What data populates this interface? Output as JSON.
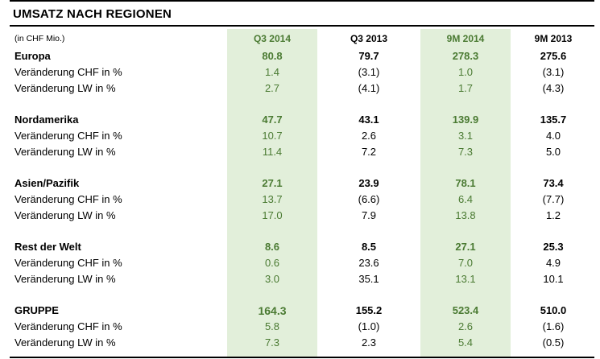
{
  "title": "UMSATZ NACH REGIONEN",
  "header": {
    "unit": "(in CHF Mio.)",
    "columns": [
      "Q3 2014",
      "Q3 2013",
      "9M 2014",
      "9M 2013"
    ]
  },
  "colors": {
    "highlight": "#e2efda",
    "green_text": "#4a7a32"
  },
  "regions": [
    {
      "name": "Europa",
      "values": [
        "80.8",
        "79.7",
        "278.3",
        "275.6"
      ],
      "rows": [
        {
          "label": "Veränderung CHF in %",
          "values": [
            "1.4",
            "(3.1)",
            "1.0",
            "(3.1)"
          ]
        },
        {
          "label": "Veränderung LW in %",
          "values": [
            "2.7",
            "(4.1)",
            "1.7",
            "(4.3)"
          ]
        }
      ]
    },
    {
      "name": "Nordamerika",
      "values": [
        "47.7",
        "43.1",
        "139.9",
        "135.7"
      ],
      "rows": [
        {
          "label": "Veränderung CHF in %",
          "values": [
            "10.7",
            "2.6",
            "3.1",
            "4.0"
          ]
        },
        {
          "label": "Veränderung LW in %",
          "values": [
            "11.4",
            "7.2",
            "7.3",
            "5.0"
          ]
        }
      ]
    },
    {
      "name": "Asien/Pazifik",
      "values": [
        "27.1",
        "23.9",
        "78.1",
        "73.4"
      ],
      "rows": [
        {
          "label": "Veränderung CHF in %",
          "values": [
            "13.7",
            "(6.6)",
            "6.4",
            "(7.7)"
          ]
        },
        {
          "label": "Veränderung LW in %",
          "values": [
            "17.0",
            "7.9",
            "13.8",
            "1.2"
          ]
        }
      ]
    },
    {
      "name": "Rest der Welt",
      "values": [
        "8.6",
        "8.5",
        "27.1",
        "25.3"
      ],
      "rows": [
        {
          "label": "Veränderung CHF in %",
          "values": [
            "0.6",
            "23.6",
            "7.0",
            "4.9"
          ]
        },
        {
          "label": "Veränderung LW in %",
          "values": [
            "3.0",
            "35.1",
            "13.1",
            "10.1"
          ]
        }
      ]
    },
    {
      "name": "GRUPPE",
      "values": [
        "164.3",
        "155.2",
        "523.4",
        "510.0"
      ],
      "rows": [
        {
          "label": "Veränderung CHF in %",
          "values": [
            "5.8",
            "(1.0)",
            "2.6",
            "(1.6)"
          ]
        },
        {
          "label": "Veränderung LW in %",
          "values": [
            "7.3",
            "2.3",
            "5.4",
            "(0.5)"
          ]
        }
      ]
    }
  ]
}
